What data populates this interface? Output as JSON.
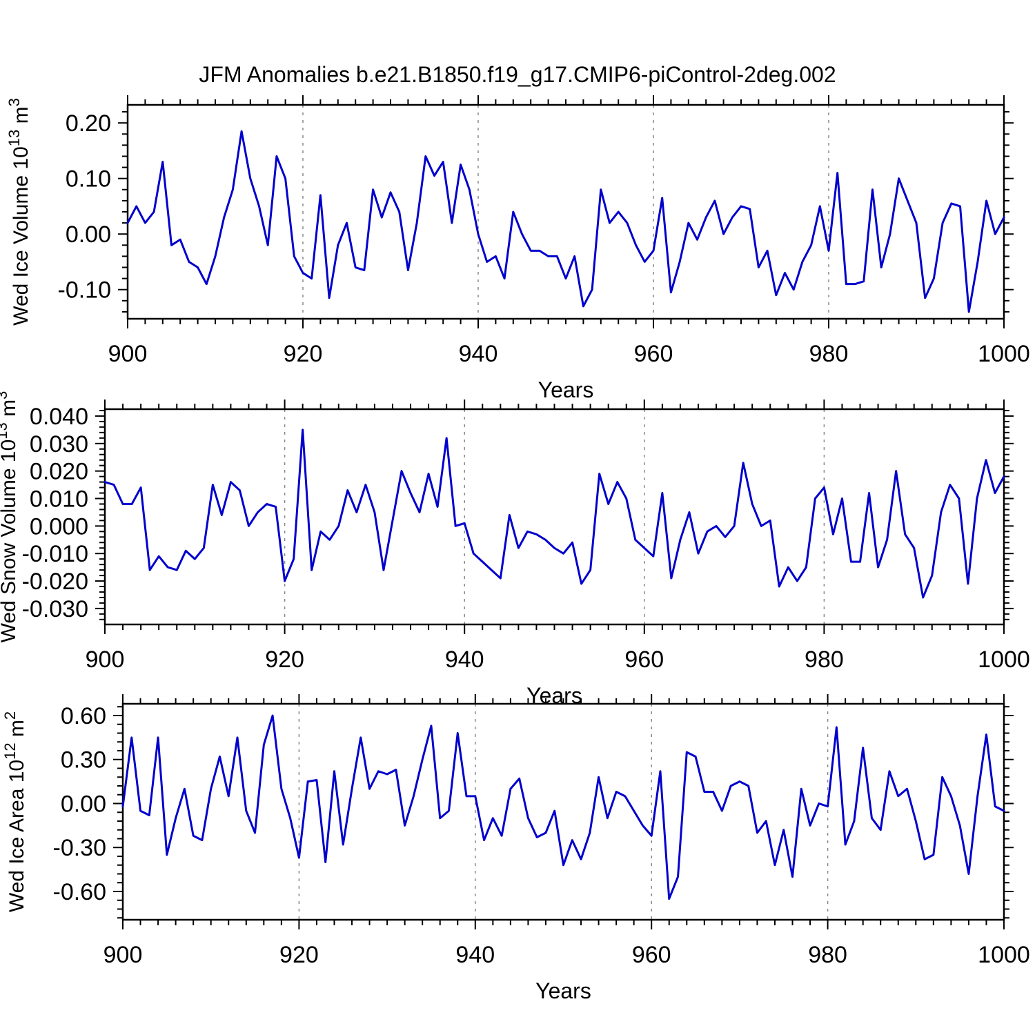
{
  "title": "JFM Anomalies b.e21.B1850.f19_g17.CMIP6-piControl-2deg.002",
  "style": {
    "line_color": "#0000CC",
    "axis_color": "#000000",
    "grid_color": "#888888",
    "background": "#FFFFFF"
  },
  "chart_data": [
    {
      "type": "line",
      "name": "wed-ice-volume",
      "ylabel": "Wed Ice Volume 10^13 m^3",
      "ylabel_parts": [
        {
          "text": "Wed Ice Volume 10",
          "sup": false
        },
        {
          "text": "13",
          "sup": true
        },
        {
          "text": " m",
          "sup": false
        },
        {
          "text": "3",
          "sup": true
        }
      ],
      "xlabel": "Years",
      "xlim": [
        900,
        1000
      ],
      "ylim": [
        -0.1525,
        0.2325
      ],
      "xtick_values": [
        900,
        920,
        940,
        960,
        980,
        1000
      ],
      "xtick_labels": [
        "900",
        "920",
        "940",
        "960",
        "980",
        "1000"
      ],
      "xtick_minor_step": 2,
      "ytick_values": [
        0.2,
        0.1,
        0.0,
        -0.1
      ],
      "ytick_labels": [
        "0.20",
        "0.10",
        "0.00",
        "-0.10"
      ],
      "ytick_minor_step": 0.02,
      "grid_x": [
        920,
        940,
        960,
        980
      ],
      "x_start": 900,
      "x_step": 1,
      "values": [
        0.02,
        0.05,
        0.02,
        0.04,
        0.13,
        -0.02,
        -0.01,
        -0.05,
        -0.06,
        -0.09,
        -0.04,
        0.03,
        0.08,
        0.185,
        0.1,
        0.05,
        -0.02,
        0.14,
        0.1,
        -0.04,
        -0.07,
        -0.08,
        0.07,
        -0.115,
        -0.02,
        0.02,
        -0.06,
        -0.065,
        0.08,
        0.03,
        0.075,
        0.04,
        -0.065,
        0.02,
        0.14,
        0.105,
        0.13,
        0.02,
        0.125,
        0.08,
        0.0,
        -0.05,
        -0.04,
        -0.08,
        0.04,
        0.0,
        -0.03,
        -0.03,
        -0.04,
        -0.04,
        -0.08,
        -0.04,
        -0.13,
        -0.1,
        0.08,
        0.02,
        0.04,
        0.02,
        -0.02,
        -0.05,
        -0.03,
        0.065,
        -0.105,
        -0.05,
        0.02,
        -0.01,
        0.03,
        0.06,
        0.0,
        0.03,
        0.05,
        0.045,
        -0.06,
        -0.03,
        -0.11,
        -0.07,
        -0.1,
        -0.05,
        -0.02,
        0.05,
        -0.03,
        0.11,
        -0.09,
        -0.09,
        -0.085,
        0.08,
        -0.06,
        0.0,
        0.1,
        0.06,
        0.02,
        -0.115,
        -0.08,
        0.02,
        0.055,
        0.05,
        -0.14,
        -0.05,
        0.06,
        0.0,
        0.03
      ]
    },
    {
      "type": "line",
      "name": "wed-snow-volume",
      "ylabel": "Wed Snow Volume 10^13 m^3",
      "ylabel_parts": [
        {
          "text": "Wed Snow Volume 10",
          "sup": false
        },
        {
          "text": "13",
          "sup": true
        },
        {
          "text": " m",
          "sup": false
        },
        {
          "text": "3",
          "sup": true
        }
      ],
      "xlabel": "Years",
      "xlim": [
        900,
        1000
      ],
      "ylim": [
        -0.0358,
        0.0425
      ],
      "xtick_values": [
        900,
        920,
        940,
        960,
        980,
        1000
      ],
      "xtick_labels": [
        "900",
        "920",
        "940",
        "960",
        "980",
        "1000"
      ],
      "xtick_minor_step": 2,
      "ytick_values": [
        0.04,
        0.03,
        0.02,
        0.01,
        0.0,
        -0.01,
        -0.02,
        -0.03
      ],
      "ytick_labels": [
        "0.040",
        "0.030",
        "0.020",
        "0.010",
        "0.000",
        "-0.010",
        "-0.020",
        "-0.030"
      ],
      "ytick_minor_step": 0.002,
      "grid_x": [
        920,
        940,
        960,
        980
      ],
      "x_start": 900,
      "x_step": 1,
      "values": [
        0.016,
        0.015,
        0.008,
        0.008,
        0.014,
        -0.016,
        -0.011,
        -0.015,
        -0.016,
        -0.009,
        -0.012,
        -0.008,
        0.015,
        0.004,
        0.016,
        0.013,
        0.0,
        0.005,
        0.008,
        0.007,
        -0.02,
        -0.012,
        0.035,
        -0.016,
        -0.002,
        -0.005,
        0.0,
        0.013,
        0.005,
        0.015,
        0.005,
        -0.016,
        0.002,
        0.02,
        0.012,
        0.005,
        0.019,
        0.007,
        0.032,
        0.0,
        0.001,
        -0.01,
        -0.013,
        -0.016,
        -0.019,
        0.004,
        -0.008,
        -0.002,
        -0.003,
        -0.005,
        -0.008,
        -0.01,
        -0.006,
        -0.021,
        -0.016,
        0.019,
        0.008,
        0.016,
        0.01,
        -0.005,
        -0.008,
        -0.011,
        0.012,
        -0.019,
        -0.005,
        0.005,
        -0.01,
        -0.002,
        0.0,
        -0.004,
        0.0,
        0.023,
        0.008,
        0.0,
        0.002,
        -0.022,
        -0.015,
        -0.02,
        -0.015,
        0.01,
        0.014,
        -0.003,
        0.01,
        -0.013,
        -0.013,
        0.012,
        -0.015,
        -0.005,
        0.02,
        -0.003,
        -0.008,
        -0.026,
        -0.018,
        0.005,
        0.015,
        0.01,
        -0.021,
        0.01,
        0.024,
        0.012,
        0.018
      ]
    },
    {
      "type": "line",
      "name": "wed-ice-area",
      "ylabel": "Wed Ice Area 10^12 m^2",
      "ylabel_parts": [
        {
          "text": "Wed Ice Area 10",
          "sup": false
        },
        {
          "text": "12",
          "sup": true
        },
        {
          "text": " m",
          "sup": false
        },
        {
          "text": "2",
          "sup": true
        }
      ],
      "xlabel": "Years",
      "xlim": [
        900,
        1000
      ],
      "ylim": [
        -0.793,
        0.68
      ],
      "xtick_values": [
        900,
        920,
        940,
        960,
        980,
        1000
      ],
      "xtick_labels": [
        "900",
        "920",
        "940",
        "960",
        "980",
        "1000"
      ],
      "xtick_minor_step": 2,
      "ytick_values": [
        0.6,
        0.3,
        0.0,
        -0.3,
        -0.6
      ],
      "ytick_labels": [
        "0.60",
        "0.30",
        "0.00",
        "-0.30",
        "-0.60"
      ],
      "ytick_minor_step": 0.06,
      "grid_x": [
        920,
        940,
        960,
        980
      ],
      "x_start": 900,
      "x_step": 1,
      "values": [
        -0.02,
        0.45,
        -0.05,
        -0.08,
        0.45,
        -0.35,
        -0.1,
        0.1,
        -0.22,
        -0.25,
        0.1,
        0.32,
        0.05,
        0.45,
        -0.05,
        -0.2,
        0.4,
        0.6,
        0.1,
        -0.1,
        -0.37,
        0.15,
        0.16,
        -0.4,
        0.22,
        -0.28,
        0.1,
        0.45,
        0.1,
        0.22,
        0.2,
        0.23,
        -0.15,
        0.05,
        0.3,
        0.53,
        -0.1,
        -0.05,
        0.48,
        0.05,
        0.05,
        -0.25,
        -0.1,
        -0.22,
        0.1,
        0.17,
        -0.1,
        -0.23,
        -0.2,
        -0.05,
        -0.42,
        -0.25,
        -0.38,
        -0.2,
        0.18,
        -0.1,
        0.08,
        0.05,
        -0.05,
        -0.15,
        -0.22,
        0.22,
        -0.65,
        -0.5,
        0.35,
        0.32,
        0.08,
        0.08,
        -0.05,
        0.12,
        0.15,
        0.12,
        -0.2,
        -0.12,
        -0.42,
        -0.18,
        -0.5,
        0.1,
        -0.15,
        0.0,
        -0.02,
        0.52,
        -0.28,
        -0.12,
        0.38,
        -0.1,
        -0.18,
        0.22,
        0.05,
        0.1,
        -0.12,
        -0.38,
        -0.35,
        0.18,
        0.05,
        -0.15,
        -0.48,
        0.05,
        0.47,
        -0.02,
        -0.05
      ]
    }
  ]
}
